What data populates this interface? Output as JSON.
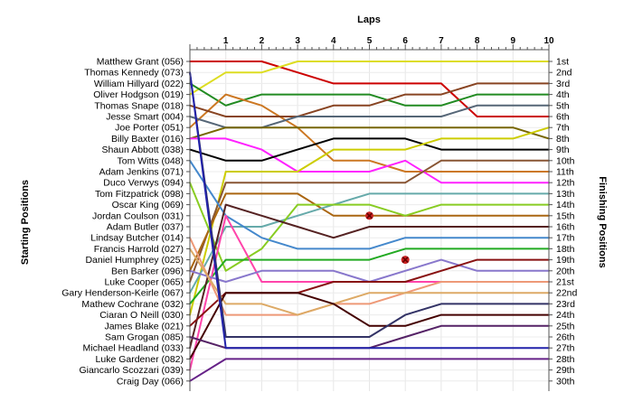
{
  "chart_data": {
    "type": "line",
    "title": "",
    "xlabel": "Laps",
    "ylabel_left": "Starting Positions",
    "ylabel_right": "Finishing Positions",
    "laps": [
      1,
      2,
      3,
      4,
      5,
      6,
      7,
      8,
      9,
      10
    ],
    "x_range": [
      0,
      10
    ],
    "y_range": [
      1,
      30
    ],
    "grid": true,
    "drivers": [
      "Matthew Grant (056)",
      "Thomas Kennedy (073)",
      "William Hillyard (022)",
      "Oliver Hodgson (019)",
      "Thomas Snape (018)",
      "Jesse Smart (004)",
      "Joe Porter (051)",
      "Billy Baxter (016)",
      "Shaun Abbott (038)",
      "Tom Witts (048)",
      "Adam Jenkins (071)",
      "Duco Verwys (094)",
      "Tom Fitzpatrick (098)",
      "Oscar King (069)",
      "Jordan Coulson (031)",
      "Adam Butler (037)",
      "Lindsay Butcher (014)",
      "Francis Harrold (027)",
      "Daniel Humphrey (025)",
      "Ben Barker (096)",
      "Luke Cooper (065)",
      "Gary Henderson-Keirle (067)",
      "Mathew Cochrane (032)",
      "Ciaran O Neill (030)",
      "James Blake (021)",
      "Sam Grogan (085)",
      "Michael Headland (033)",
      "Luke Gardener (082)",
      "Giancarlo Scozzari (039)",
      "Craig Day (066)"
    ],
    "finishing_positions": [
      "1st",
      "2nd",
      "3rd",
      "4th",
      "5th",
      "6th",
      "7th",
      "8th",
      "9th",
      "10th",
      "11th",
      "12th",
      "13th",
      "14th",
      "15th",
      "16th",
      "17th",
      "18th",
      "19th",
      "20th",
      "21st",
      "22nd",
      "23rd",
      "24th",
      "25th",
      "26th",
      "27th",
      "28th",
      "29th",
      "30th"
    ],
    "series": [
      {
        "color": "#cc0000",
        "positions": [
          1,
          1,
          1,
          2,
          3,
          3,
          3,
          3,
          6,
          6,
          6
        ]
      },
      {
        "color": "#dddd22",
        "positions": [
          4,
          2,
          2,
          1,
          1,
          1,
          1,
          1,
          1,
          1,
          1
        ]
      },
      {
        "color": "#228b22",
        "positions": [
          3,
          5,
          4,
          4,
          4,
          4,
          5,
          5,
          4,
          4,
          4
        ]
      },
      {
        "color": "#cc7722",
        "positions": [
          7,
          4,
          5,
          7,
          10,
          10,
          11,
          11,
          11,
          11,
          11
        ]
      },
      {
        "color": "#884422",
        "positions": [
          5,
          6,
          6,
          6,
          5,
          5,
          4,
          4,
          3,
          3,
          3
        ]
      },
      {
        "color": "#556677",
        "positions": [
          6,
          7,
          7,
          6,
          6,
          6,
          6,
          6,
          5,
          5,
          5
        ]
      },
      {
        "color": "#776600",
        "positions": [
          8,
          7,
          7,
          7,
          7,
          7,
          7,
          7,
          7,
          7,
          8
        ]
      },
      {
        "color": "#ff22ff",
        "positions": [
          8,
          8,
          9,
          11,
          11,
          11,
          10,
          12,
          12,
          12,
          12
        ]
      },
      {
        "color": "#000000",
        "positions": [
          9,
          10,
          10,
          9,
          8,
          8,
          8,
          9,
          9,
          9,
          9
        ]
      },
      {
        "color": "#cccc00",
        "positions": [
          24,
          11,
          11,
          11,
          9,
          9,
          9,
          8,
          8,
          8,
          7
        ]
      },
      {
        "color": "#885533",
        "positions": [
          21,
          12,
          12,
          12,
          12,
          12,
          12,
          10,
          10,
          10,
          10
        ]
      },
      {
        "color": "#aa6611",
        "positions": [
          20,
          13,
          13,
          13,
          15,
          15,
          15,
          15,
          15,
          15,
          15
        ]
      },
      {
        "color": "#66aaaa",
        "positions": [
          22,
          16,
          16,
          15,
          14,
          13,
          13,
          13,
          13,
          13,
          13
        ]
      },
      {
        "color": "#88cc22",
        "positions": [
          12,
          20,
          18,
          14,
          14,
          14,
          15,
          14,
          14,
          14,
          14
        ]
      },
      {
        "color": "#4488cc",
        "positions": [
          10,
          15,
          17,
          18,
          18,
          18,
          17,
          17,
          17,
          17,
          17
        ]
      },
      {
        "color": "#22aa22",
        "positions": [
          23,
          19,
          19,
          19,
          19,
          19,
          18,
          18,
          18,
          18,
          18
        ]
      },
      {
        "color": "#552222",
        "positions": [
          27,
          14,
          15,
          16,
          17,
          16,
          16,
          16,
          16,
          16,
          16
        ]
      },
      {
        "color": "#ff44aa",
        "positions": [
          29,
          15,
          21,
          21,
          21,
          21,
          21,
          21,
          21,
          21,
          21
        ]
      },
      {
        "color": "#8877cc",
        "positions": [
          20,
          21,
          20,
          20,
          20,
          21,
          20,
          19,
          20,
          20,
          20
        ]
      },
      {
        "color": "#881111",
        "positions": [
          25,
          22,
          22,
          22,
          21,
          21,
          21,
          20,
          19,
          19,
          19
        ]
      },
      {
        "color": "#ee9977",
        "positions": [
          17,
          24,
          24,
          24,
          23,
          23,
          22,
          21,
          21,
          21,
          21
        ]
      },
      {
        "color": "#ddaa66",
        "positions": [
          18,
          23,
          23,
          24,
          23,
          22,
          22,
          22,
          22,
          22,
          22
        ]
      },
      {
        "color": "#440000",
        "positions": [
          28,
          22,
          22,
          22,
          23,
          25,
          25,
          24,
          24,
          24,
          24
        ]
      },
      {
        "color": "#333366",
        "positions": [
          2,
          26,
          26,
          26,
          26,
          26,
          24,
          23,
          23,
          23,
          23
        ]
      },
      {
        "color": "#552266",
        "positions": [
          26,
          27,
          27,
          27,
          27,
          27,
          26,
          25,
          25,
          25,
          25
        ]
      },
      {
        "color": "#2222aa",
        "positions": [
          2,
          27,
          27,
          27,
          27,
          27,
          27,
          27,
          27,
          27,
          27
        ]
      },
      {
        "color": "#662288",
        "positions": [
          30,
          28,
          28,
          28,
          28,
          28,
          28,
          28,
          28,
          28,
          28
        ]
      }
    ],
    "retirements": [
      {
        "lap": 5,
        "position": 15
      },
      {
        "lap": 6,
        "position": 19
      }
    ]
  }
}
